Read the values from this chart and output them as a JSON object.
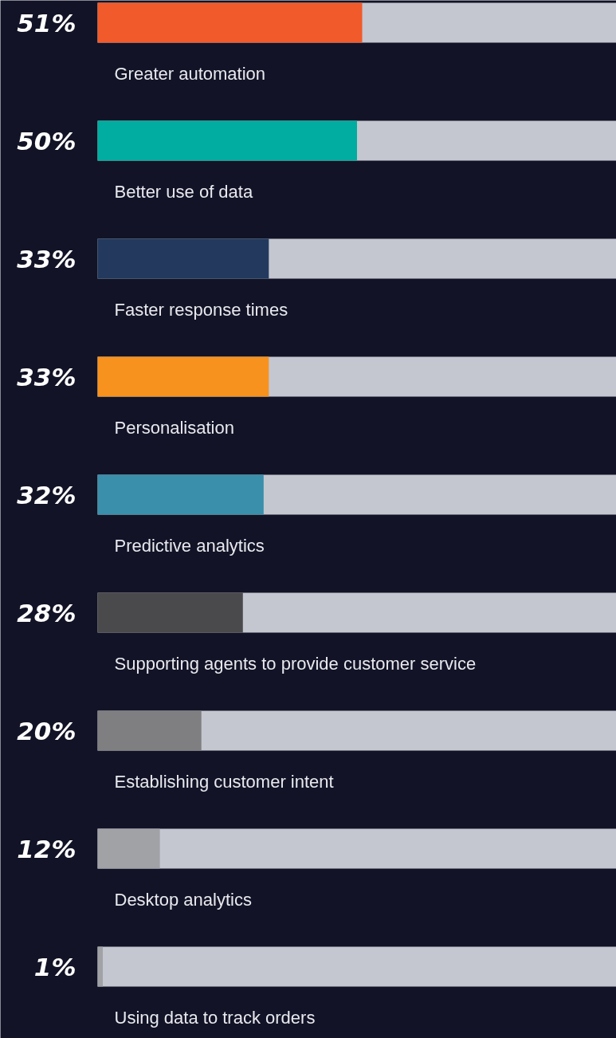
{
  "chart_data": {
    "type": "bar",
    "orientation": "horizontal",
    "categories": [
      "Greater automation",
      "Better use of data",
      "Faster response times",
      "Personalisation",
      "Predictive analytics",
      "Supporting agents to provide customer service",
      "Establishing customer intent",
      "Desktop analytics",
      "Using data to track orders"
    ],
    "values": [
      51,
      50,
      33,
      33,
      32,
      28,
      20,
      12,
      1
    ],
    "value_labels": [
      "51%",
      "50%",
      "33%",
      "33%",
      "32%",
      "28%",
      "20%",
      "12%",
      "1%"
    ],
    "colors": [
      "#f15a2b",
      "#00ada0",
      "#233a5e",
      "#f7921e",
      "#3a8fab",
      "#4a4a4c",
      "#7f7f81",
      "#a0a2a6",
      "#a0a2a6"
    ],
    "xlim": [
      0,
      100
    ]
  }
}
